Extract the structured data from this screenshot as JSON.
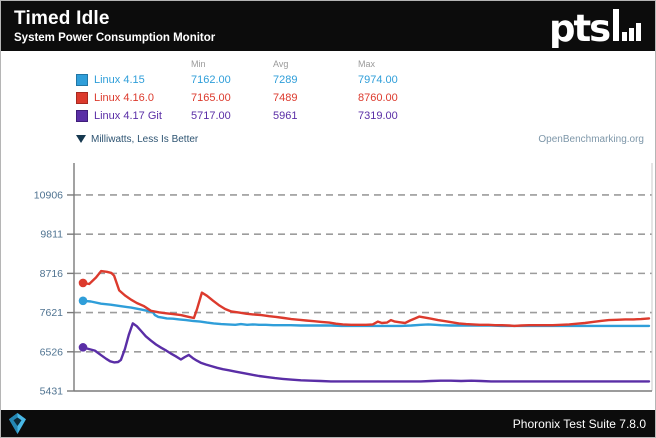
{
  "header": {
    "title": "Timed Idle",
    "subtitle": "System Power Consumption Monitor",
    "logo_text": "pts"
  },
  "legend": {
    "columns": [
      "Min",
      "Avg",
      "Max"
    ],
    "rows": [
      {
        "label": "Linux 4.15",
        "color": "#2f9ed9",
        "border": "#2276a5",
        "min": "7162.00",
        "avg": "7289",
        "max": "7974.00"
      },
      {
        "label": "Linux 4.16.0",
        "color": "#dc3a2d",
        "border": "#a8291f",
        "min": "7165.00",
        "avg": "7489",
        "max": "8760.00"
      },
      {
        "label": "Linux 4.17 Git",
        "color": "#5a2ea6",
        "border": "#3f1d7a",
        "min": "5717.00",
        "avg": "5961",
        "max": "7319.00"
      }
    ]
  },
  "chart": {
    "unit_label": "Milliwatts, Less Is Better",
    "watermark": "OpenBenchmarking.org"
  },
  "footer": {
    "text": "Phoronix Test Suite 7.8.0"
  },
  "colors": {
    "tick_label": "#4f7391",
    "gridline": "#9c9c9c",
    "axis": "#7a7a7a",
    "plot_right_border": "#c9c9c9"
  },
  "chart_data": {
    "type": "line",
    "title": "Timed Idle - System Power Consumption Monitor",
    "ylabel": "Milliwatts",
    "ylim": [
      5431,
      11715
    ],
    "yticks": [
      5431,
      6526,
      7621,
      8716,
      9811,
      10906
    ],
    "grid": "horizontal-dashed",
    "legend_position": "top",
    "x_axis": "unlabeled time samples, x given as percent 0-100",
    "series": [
      {
        "name": "Linux 4.15",
        "color": "#2f9ed9",
        "points": [
          [
            0,
            7950
          ],
          [
            1.4,
            7930
          ],
          [
            3.2,
            7870
          ],
          [
            4.9,
            7840
          ],
          [
            6.7,
            7800
          ],
          [
            8.5,
            7760
          ],
          [
            10.2,
            7710
          ],
          [
            11.7,
            7660
          ],
          [
            12.4,
            7620
          ],
          [
            12.7,
            7550
          ],
          [
            13.3,
            7500
          ],
          [
            14,
            7480
          ],
          [
            14.8,
            7460
          ],
          [
            15.9,
            7450
          ],
          [
            17,
            7430
          ],
          [
            18.2,
            7410
          ],
          [
            19.4,
            7390
          ],
          [
            20.7,
            7370
          ],
          [
            21.9,
            7340
          ],
          [
            23.1,
            7320
          ],
          [
            24.4,
            7300
          ],
          [
            25.6,
            7290
          ],
          [
            26.9,
            7280
          ],
          [
            27.9,
            7300
          ],
          [
            29,
            7280
          ],
          [
            30,
            7290
          ],
          [
            31.1,
            7280
          ],
          [
            32.3,
            7280
          ],
          [
            33.6,
            7270
          ],
          [
            35,
            7270
          ],
          [
            36.7,
            7270
          ],
          [
            38.5,
            7260
          ],
          [
            40.3,
            7260
          ],
          [
            42,
            7260
          ],
          [
            43.8,
            7260
          ],
          [
            45.6,
            7250
          ],
          [
            47.3,
            7250
          ],
          [
            49.1,
            7250
          ],
          [
            50.9,
            7250
          ],
          [
            52.7,
            7250
          ],
          [
            54.4,
            7250
          ],
          [
            56.2,
            7250
          ],
          [
            58,
            7260
          ],
          [
            59.7,
            7280
          ],
          [
            61,
            7290
          ],
          [
            62.2,
            7280
          ],
          [
            63.2,
            7270
          ],
          [
            65,
            7260
          ],
          [
            66.8,
            7260
          ],
          [
            68.6,
            7260
          ],
          [
            70.3,
            7260
          ],
          [
            72.1,
            7260
          ],
          [
            73.9,
            7250
          ],
          [
            75.6,
            7250
          ],
          [
            77.4,
            7250
          ],
          [
            79.2,
            7250
          ],
          [
            81.8,
            7250
          ],
          [
            84.5,
            7250
          ],
          [
            87.1,
            7250
          ],
          [
            89.8,
            7250
          ],
          [
            92.4,
            7250
          ],
          [
            95.1,
            7250
          ],
          [
            97.7,
            7250
          ],
          [
            100,
            7250
          ]
        ]
      },
      {
        "name": "Linux 4.16.0",
        "color": "#dc3a2d",
        "points": [
          [
            0,
            8450
          ],
          [
            1.1,
            8420
          ],
          [
            2.3,
            8600
          ],
          [
            3.2,
            8780
          ],
          [
            4.2,
            8760
          ],
          [
            5,
            8730
          ],
          [
            5.5,
            8650
          ],
          [
            6.4,
            8240
          ],
          [
            7.4,
            8100
          ],
          [
            8.5,
            7980
          ],
          [
            9.5,
            7890
          ],
          [
            10.8,
            7800
          ],
          [
            12,
            7670
          ],
          [
            13.4,
            7630
          ],
          [
            14.7,
            7600
          ],
          [
            15.9,
            7580
          ],
          [
            17.3,
            7550
          ],
          [
            18.7,
            7500
          ],
          [
            19.6,
            7470
          ],
          [
            20.1,
            7700
          ],
          [
            21,
            8180
          ],
          [
            21.9,
            8090
          ],
          [
            23,
            7950
          ],
          [
            24,
            7830
          ],
          [
            25.1,
            7720
          ],
          [
            26.2,
            7650
          ],
          [
            27.6,
            7620
          ],
          [
            28.8,
            7590
          ],
          [
            30,
            7570
          ],
          [
            31.5,
            7550
          ],
          [
            32.9,
            7520
          ],
          [
            34.1,
            7500
          ],
          [
            35.5,
            7470
          ],
          [
            36.8,
            7440
          ],
          [
            38.2,
            7420
          ],
          [
            39.4,
            7400
          ],
          [
            40.8,
            7380
          ],
          [
            42.1,
            7360
          ],
          [
            43.5,
            7340
          ],
          [
            44.7,
            7310
          ],
          [
            45.9,
            7290
          ],
          [
            47.4,
            7280
          ],
          [
            48.8,
            7280
          ],
          [
            50,
            7280
          ],
          [
            51.2,
            7290
          ],
          [
            52.1,
            7370
          ],
          [
            52.8,
            7330
          ],
          [
            53.7,
            7340
          ],
          [
            54.4,
            7410
          ],
          [
            55.1,
            7370
          ],
          [
            56,
            7350
          ],
          [
            56.9,
            7330
          ],
          [
            57.8,
            7400
          ],
          [
            58.7,
            7460
          ],
          [
            59.4,
            7510
          ],
          [
            60.4,
            7480
          ],
          [
            61.5,
            7450
          ],
          [
            62.7,
            7410
          ],
          [
            64,
            7380
          ],
          [
            65.2,
            7350
          ],
          [
            66.4,
            7320
          ],
          [
            67.7,
            7300
          ],
          [
            68.9,
            7290
          ],
          [
            70.1,
            7280
          ],
          [
            71.6,
            7280
          ],
          [
            72.8,
            7270
          ],
          [
            74,
            7270
          ],
          [
            75.3,
            7260
          ],
          [
            76.2,
            7250
          ],
          [
            77.4,
            7260
          ],
          [
            78.8,
            7270
          ],
          [
            80.2,
            7270
          ],
          [
            81.6,
            7270
          ],
          [
            83,
            7270
          ],
          [
            84.5,
            7280
          ],
          [
            85.9,
            7290
          ],
          [
            87.3,
            7310
          ],
          [
            88.7,
            7330
          ],
          [
            90.1,
            7360
          ],
          [
            91.5,
            7390
          ],
          [
            92.9,
            7410
          ],
          [
            94.3,
            7420
          ],
          [
            95.8,
            7430
          ],
          [
            97.2,
            7430
          ],
          [
            98.6,
            7440
          ],
          [
            100,
            7460
          ]
        ]
      },
      {
        "name": "Linux 4.17 Git",
        "color": "#5a2ea6",
        "points": [
          [
            0,
            6650
          ],
          [
            1.1,
            6600
          ],
          [
            2.1,
            6560
          ],
          [
            3.2,
            6430
          ],
          [
            4.1,
            6330
          ],
          [
            4.8,
            6260
          ],
          [
            5.5,
            6230
          ],
          [
            6.2,
            6240
          ],
          [
            6.7,
            6300
          ],
          [
            7.4,
            6600
          ],
          [
            8.1,
            7000
          ],
          [
            8.8,
            7320
          ],
          [
            9.5,
            7240
          ],
          [
            10.2,
            7120
          ],
          [
            11.1,
            6960
          ],
          [
            12,
            6840
          ],
          [
            12.9,
            6730
          ],
          [
            13.8,
            6640
          ],
          [
            14.7,
            6560
          ],
          [
            15.5,
            6480
          ],
          [
            16.4,
            6400
          ],
          [
            17.3,
            6310
          ],
          [
            18,
            6380
          ],
          [
            18.7,
            6440
          ],
          [
            19.4,
            6350
          ],
          [
            20.1,
            6280
          ],
          [
            20.8,
            6220
          ],
          [
            21.7,
            6170
          ],
          [
            22.6,
            6130
          ],
          [
            23.7,
            6080
          ],
          [
            24.7,
            6040
          ],
          [
            25.8,
            6010
          ],
          [
            27,
            5970
          ],
          [
            28.3,
            5930
          ],
          [
            29.7,
            5890
          ],
          [
            31.1,
            5850
          ],
          [
            32.5,
            5820
          ],
          [
            33.9,
            5790
          ],
          [
            35.3,
            5770
          ],
          [
            36.7,
            5750
          ],
          [
            38.5,
            5730
          ],
          [
            40.3,
            5720
          ],
          [
            42,
            5710
          ],
          [
            43.8,
            5700
          ],
          [
            45.6,
            5700
          ],
          [
            47.3,
            5700
          ],
          [
            49.1,
            5700
          ],
          [
            50.9,
            5700
          ],
          [
            52.7,
            5700
          ],
          [
            54.4,
            5700
          ],
          [
            56.2,
            5700
          ],
          [
            58,
            5700
          ],
          [
            59.7,
            5700
          ],
          [
            61.5,
            5710
          ],
          [
            63.2,
            5720
          ],
          [
            65,
            5720
          ],
          [
            66.8,
            5710
          ],
          [
            68.6,
            5720
          ],
          [
            70.3,
            5710
          ],
          [
            72.1,
            5700
          ],
          [
            73.9,
            5700
          ],
          [
            76.5,
            5700
          ],
          [
            79.2,
            5700
          ],
          [
            81.8,
            5700
          ],
          [
            84.5,
            5700
          ],
          [
            87.1,
            5700
          ],
          [
            89.8,
            5700
          ],
          [
            92.4,
            5700
          ],
          [
            95.1,
            5700
          ],
          [
            97.7,
            5700
          ],
          [
            100,
            5700
          ]
        ]
      }
    ]
  }
}
